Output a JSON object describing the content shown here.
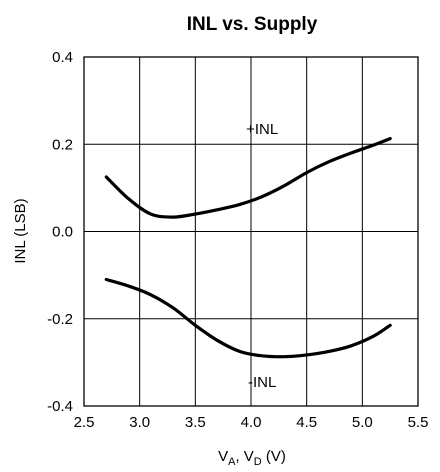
{
  "chart_data": {
    "type": "line",
    "title": "INL vs. Supply",
    "xlabel": {
      "base_v": "V",
      "sub_a": "A",
      "sep": ", ",
      "base_d": "V",
      "sub_d": "D",
      "unit": " (V)"
    },
    "ylabel": "INL (LSB)",
    "xlim": [
      2.5,
      5.5
    ],
    "ylim": [
      -0.4,
      0.4
    ],
    "xticks": [
      "2.5",
      "3.0",
      "3.5",
      "4.0",
      "4.5",
      "5.0",
      "5.5"
    ],
    "yticks": [
      "0.4",
      "0.2",
      "0.0",
      "-0.2",
      "-0.4"
    ],
    "grid": true,
    "series": [
      {
        "name": "+INL",
        "x": [
          2.7,
          2.9,
          3.1,
          3.3,
          3.5,
          3.7,
          3.9,
          4.1,
          4.3,
          4.5,
          4.7,
          4.9,
          5.1,
          5.25
        ],
        "y": [
          0.125,
          0.075,
          0.04,
          0.033,
          0.04,
          0.05,
          0.062,
          0.08,
          0.105,
          0.135,
          0.16,
          0.18,
          0.198,
          0.213
        ]
      },
      {
        "name": "-INL",
        "x": [
          2.7,
          2.9,
          3.1,
          3.3,
          3.5,
          3.7,
          3.9,
          4.1,
          4.3,
          4.5,
          4.7,
          4.9,
          5.1,
          5.25
        ],
        "y": [
          -0.11,
          -0.125,
          -0.145,
          -0.175,
          -0.215,
          -0.25,
          -0.275,
          -0.285,
          -0.287,
          -0.283,
          -0.275,
          -0.262,
          -0.24,
          -0.215
        ]
      }
    ],
    "annotations": [
      {
        "text": "+INL",
        "x": 4.1,
        "y": 0.235
      },
      {
        "text": "-INL",
        "x": 4.1,
        "y": -0.345
      }
    ]
  }
}
